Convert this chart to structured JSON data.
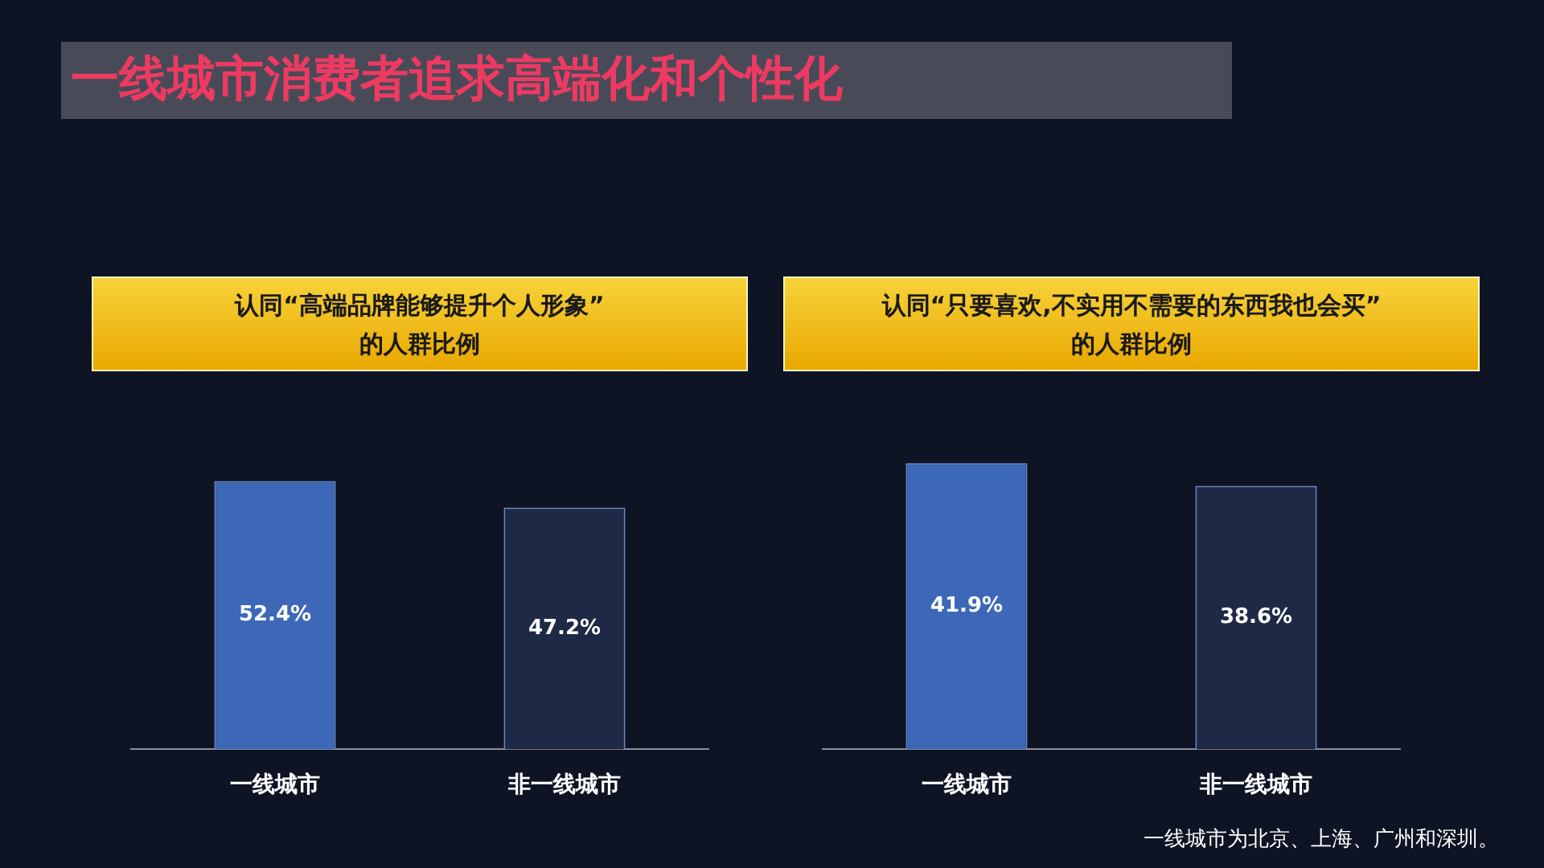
{
  "chart_data": [
    {
      "type": "bar",
      "title": "认同“高端品牌能够提升个人形象”\n的人群比例",
      "annotations": [
        "一线城市消费者追求高端化和个性化"
      ],
      "categories": [
        "一线城市",
        "非一线城市"
      ],
      "values": [
        52.4,
        47.2
      ],
      "colors": [
        "#3d68b8",
        "#1e2a45"
      ],
      "value_labels": [
        "52.4%",
        "47.2%"
      ]
    },
    {
      "type": "bar",
      "title": "认同“只要喜欢,不实用不需要的东西我也会买”\n的人群比例",
      "annotations": [
        "一线城市为北京、上海、广州和深圳。"
      ],
      "categories": [
        "一线城市",
        "非一线城市"
      ],
      "values": [
        41.9,
        38.6
      ],
      "colors": [
        "#3d68b8",
        "#1e2a45"
      ],
      "value_labels": [
        "41.9%",
        "38.6%"
      ]
    }
  ]
}
